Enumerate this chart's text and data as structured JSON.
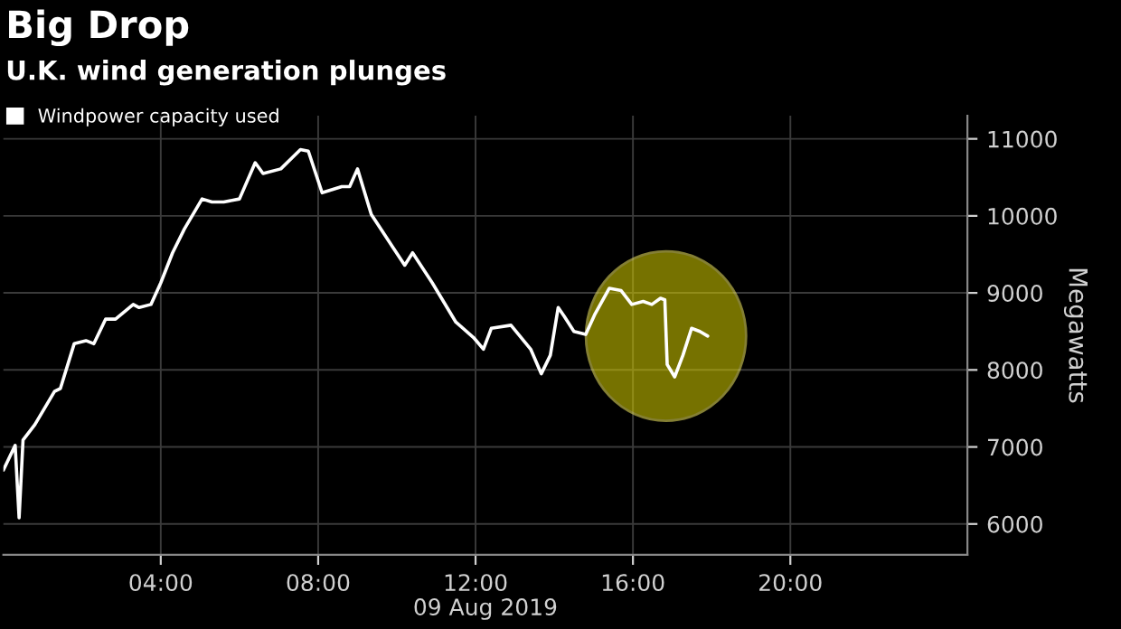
{
  "chart_data": {
    "type": "line",
    "title": "Big Drop",
    "subtitle": "U.K. wind generation plunges",
    "xlabel": "09 Aug 2019",
    "ylabel": "Megawatts",
    "series": [
      {
        "name": "Windpower capacity used",
        "color": "#ffffff",
        "x": [
          0,
          0.3,
          0.4,
          0.5,
          0.8,
          1.3,
          1.45,
          1.8,
          2.1,
          2.3,
          2.6,
          2.85,
          3.3,
          3.45,
          3.75,
          4.0,
          4.3,
          4.6,
          5.05,
          5.3,
          5.6,
          6.0,
          6.4,
          6.6,
          7.05,
          7.55,
          7.75,
          8.1,
          8.6,
          8.8,
          9.0,
          9.35,
          9.9,
          10.2,
          10.4,
          10.9,
          11.5,
          11.95,
          12.2,
          12.4,
          12.9,
          13.4,
          13.67,
          13.9,
          14.1,
          14.25,
          14.5,
          14.8,
          15.04,
          15.4,
          15.7,
          15.97,
          16.26,
          16.48,
          16.7,
          16.81,
          16.87,
          17.06,
          17.27,
          17.49,
          17.7,
          17.9
        ],
        "values": [
          6700,
          7020,
          6080,
          7090,
          7290,
          7720,
          7760,
          8340,
          8380,
          8340,
          8660,
          8660,
          8850,
          8810,
          8850,
          9130,
          9520,
          9830,
          10220,
          10180,
          10180,
          10220,
          10690,
          10550,
          10610,
          10860,
          10840,
          10300,
          10380,
          10380,
          10610,
          10020,
          9590,
          9360,
          9520,
          9130,
          8620,
          8420,
          8270,
          8540,
          8580,
          8270,
          7950,
          8190,
          8810,
          8700,
          8500,
          8460,
          8730,
          9060,
          9030,
          8850,
          8890,
          8850,
          8930,
          8910,
          8070,
          7910,
          8190,
          8540,
          8500,
          8440
        ]
      }
    ],
    "xlim": [
      0,
      24.5
    ],
    "ylim": [
      5600,
      11300
    ],
    "xticks": [
      {
        "value": 4,
        "label": "04:00"
      },
      {
        "value": 8,
        "label": "08:00"
      },
      {
        "value": 12,
        "label": "12:00"
      },
      {
        "value": 16,
        "label": "16:00"
      },
      {
        "value": 20,
        "label": "20:00"
      }
    ],
    "yticks": [
      6000,
      7000,
      8000,
      9000,
      10000,
      11000
    ],
    "grid": true,
    "legend": "top left"
  }
}
